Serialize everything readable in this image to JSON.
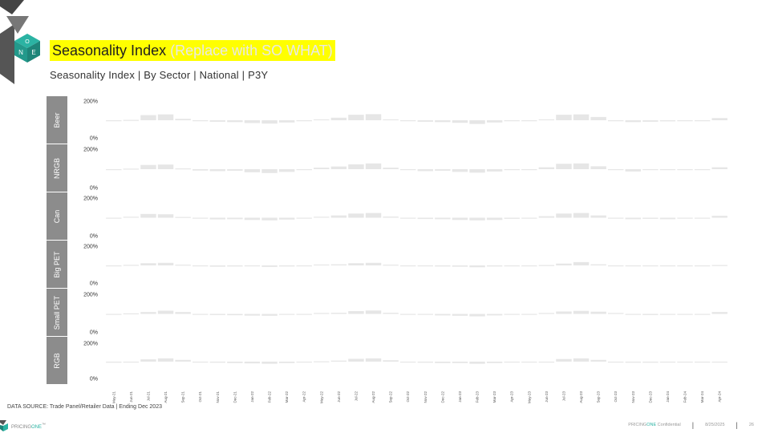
{
  "header": {
    "title": "Seasonality Index",
    "title_placeholder": "(Replace with SO WHAT)",
    "subtitle": "Seasonality Index | By Sector | National | P3Y"
  },
  "logo": {
    "letters": [
      "O",
      "N",
      "E"
    ]
  },
  "footer": {
    "source": "DATA SOURCE: Trade Panel/Retailer Data | Ending Dec 2023",
    "brand_prefix": "PRICING",
    "brand_suffix": "ONE",
    "brand_tm": "™",
    "confidential_prefix": "PRICING",
    "confidential_brand": "ONE",
    "confidential_suffix": " Confidential",
    "date": "8/25/2025",
    "page": "26"
  },
  "colors": {
    "accent_teal": "#2bb3a3",
    "highlight_yellow": "#ffff00",
    "bar_gray": "#e6e6e6",
    "band_gray": "#8c8c8c"
  },
  "chart_data": {
    "type": "bar",
    "y_tick_top": "200%",
    "y_tick_bottom": "0%",
    "ylim": [
      0,
      200
    ],
    "baseline": 100,
    "categories": [
      "May-21",
      "Jun-21",
      "Jul-21",
      "Aug-21",
      "Sep-21",
      "Oct-21",
      "Nov-21",
      "Dec-21",
      "Jan-22",
      "Feb-22",
      "Mar-22",
      "Apr-22",
      "May-22",
      "Jun-22",
      "Jul-22",
      "Aug-22",
      "Sep-22",
      "Oct-22",
      "Nov-22",
      "Dec-22",
      "Jan-23",
      "Feb-23",
      "Mar-23",
      "Apr-23",
      "May-23",
      "Jun-23",
      "Jul-23",
      "Aug-23",
      "Sep-23",
      "Oct-23",
      "Nov-23",
      "Dec-23",
      "Jan-24",
      "Feb-24",
      "Mar-24",
      "Apr-24"
    ],
    "series": [
      {
        "name": "Beer",
        "values": [
          100,
          102,
          128,
          132,
          108,
          96,
          92,
          90,
          85,
          82,
          88,
          95,
          105,
          114,
          130,
          133,
          105,
          98,
          92,
          90,
          86,
          80,
          88,
          95,
          100,
          105,
          130,
          132,
          118,
          100,
          90,
          92,
          94,
          96,
          100,
          112
        ]
      },
      {
        "name": "NRGB",
        "values": [
          100,
          103,
          122,
          124,
          104,
          93,
          90,
          92,
          84,
          80,
          86,
          96,
          108,
          114,
          125,
          130,
          108,
          98,
          90,
          92,
          86,
          82,
          88,
          95,
          100,
          110,
          128,
          130,
          115,
          100,
          88,
          95,
          95,
          95,
          98,
          110
        ]
      },
      {
        "name": "Can",
        "values": [
          100,
          105,
          120,
          118,
          104,
          95,
          91,
          92,
          88,
          86,
          90,
          96,
          105,
          112,
          122,
          125,
          106,
          98,
          93,
          92,
          88,
          86,
          88,
          94,
          98,
          108,
          122,
          125,
          112,
          100,
          92,
          94,
          92,
          96,
          98,
          110
        ]
      },
      {
        "name": "Big PET",
        "values": [
          100,
          103,
          112,
          114,
          104,
          96,
          93,
          94,
          95,
          92,
          94,
          97,
          105,
          106,
          112,
          114,
          104,
          98,
          95,
          94,
          93,
          90,
          94,
          96,
          98,
          102,
          110,
          118,
          106,
          100,
          96,
          96,
          96,
          98,
          99,
          102
        ]
      },
      {
        "name": "Small PET",
        "values": [
          100,
          103,
          110,
          117,
          110,
          98,
          94,
          93,
          91,
          90,
          95,
          98,
          105,
          106,
          115,
          118,
          106,
          100,
          95,
          92,
          90,
          87,
          92,
          96,
          100,
          105,
          113,
          116,
          112,
          105,
          96,
          94,
          96,
          98,
          96,
          110
        ]
      },
      {
        "name": "RGB",
        "values": [
          94,
          99,
          113,
          118,
          110,
          100,
          94,
          92,
          90,
          88,
          92,
          96,
          102,
          106,
          116,
          118,
          108,
          100,
          94,
          92,
          92,
          88,
          92,
          96,
          98,
          100,
          115,
          118,
          110,
          100,
          94,
          94,
          98,
          98,
          97,
          100
        ]
      }
    ]
  }
}
